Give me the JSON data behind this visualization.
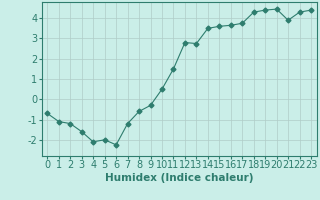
{
  "x": [
    0,
    1,
    2,
    3,
    4,
    5,
    6,
    7,
    8,
    9,
    10,
    11,
    12,
    13,
    14,
    15,
    16,
    17,
    18,
    19,
    20,
    21,
    22,
    23
  ],
  "y": [
    -0.7,
    -1.1,
    -1.2,
    -1.6,
    -2.1,
    -2.0,
    -2.25,
    -1.2,
    -0.6,
    -0.3,
    0.5,
    1.5,
    2.8,
    2.75,
    3.5,
    3.6,
    3.65,
    3.75,
    4.3,
    4.4,
    4.45,
    3.9,
    4.3,
    4.4
  ],
  "line_color": "#2e7d6e",
  "marker": "D",
  "marker_size": 2.5,
  "bg_color": "#caeee8",
  "grid_color": "#b0ccc8",
  "axis_color": "#2e7d6e",
  "xlabel": "Humidex (Indice chaleur)",
  "xlabel_fontsize": 7.5,
  "tick_fontsize": 7,
  "xlim": [
    -0.5,
    23.5
  ],
  "ylim": [
    -2.8,
    4.8
  ],
  "yticks": [
    -2,
    -1,
    0,
    1,
    2,
    3,
    4
  ],
  "xticks": [
    0,
    1,
    2,
    3,
    4,
    5,
    6,
    7,
    8,
    9,
    10,
    11,
    12,
    13,
    14,
    15,
    16,
    17,
    18,
    19,
    20,
    21,
    22,
    23
  ]
}
